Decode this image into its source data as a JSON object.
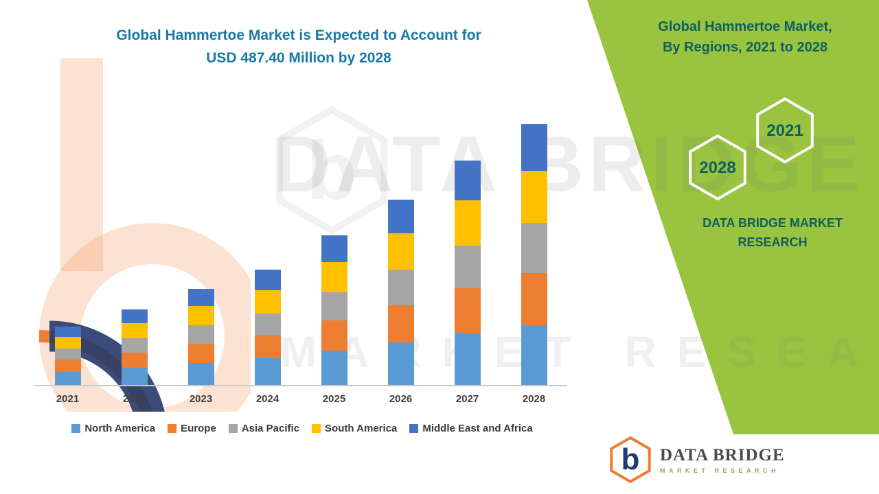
{
  "header": {
    "title_line1": "Global Hammertoe Market is Expected to Account for",
    "title_line2": "USD 487.40 Million by 2028"
  },
  "chart_data": {
    "type": "bar",
    "stacked": true,
    "title": "Global Hammertoe Market is Expected to Account for USD 487.40 Million by 2028",
    "unit": "USD Million",
    "categories": [
      "2021",
      "2022",
      "2023",
      "2024",
      "2025",
      "2026",
      "2027",
      "2028"
    ],
    "series": [
      {
        "name": "North America",
        "color": "#5B9BD5",
        "values": [
          25,
          32,
          41,
          50,
          64,
          80,
          97,
          112.1
        ]
      },
      {
        "name": "Europe",
        "color": "#ED7D31",
        "values": [
          22,
          28,
          36,
          43,
          56,
          69,
          84,
          97.5
        ]
      },
      {
        "name": "Asia Pacific",
        "color": "#A5A5A5",
        "values": [
          21,
          27,
          34,
          41,
          53,
          66,
          80,
          92.6
        ]
      },
      {
        "name": "South America",
        "color": "#FFC000",
        "values": [
          22,
          28,
          36,
          43,
          56,
          69,
          84,
          97.5
        ]
      },
      {
        "name": "Middle East and Africa",
        "color": "#4472C4",
        "values": [
          19,
          26,
          33,
          38,
          51,
          62,
          75,
          87.7
        ]
      }
    ],
    "totals": [
      109,
      141,
      180,
      215,
      280,
      346,
      420,
      487.4
    ],
    "ylim": [
      0,
      500
    ],
    "grid": false,
    "legend_position": "bottom"
  },
  "side_panel": {
    "title_line1": "Global Hammertoe Market,",
    "title_line2": "By Regions, 2021 to 2028",
    "hex_back": "2028",
    "hex_front": "2021",
    "brand_line1": "DATA BRIDGE MARKET",
    "brand_line2": "RESEARCH"
  },
  "watermark": {
    "line1": "DATA BRIDGE",
    "line2": "MARKET RESEARCH",
    "letter": "b"
  },
  "footer_logo": {
    "title": "DATA BRIDGE",
    "subtitle": "MARKET RESEARCH",
    "monogram": "b"
  },
  "colors": {
    "panel_green": "#99C440",
    "panel_text": "#0F5E60",
    "title_blue": "#1878A6",
    "axis_label": "#3F3F3F",
    "axis_line": "#C9C9C9"
  }
}
